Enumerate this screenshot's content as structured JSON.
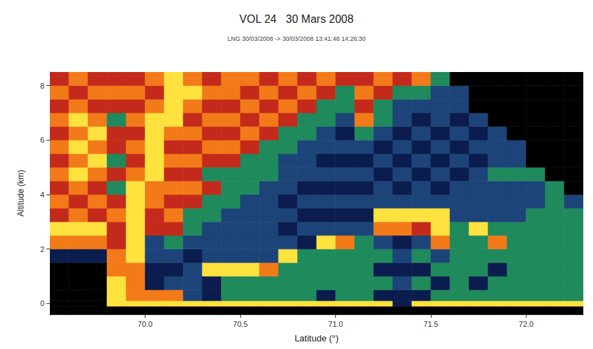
{
  "chart_data": {
    "type": "heatmap",
    "title": "VOL 24   30 Mars 2008",
    "subtitle": "LNG 30/03/2008 -> 30/03/2008 13:41:48 14:26:30",
    "xlabel": "Latitude (°)",
    "ylabel": "Altitude (km)",
    "xlim": [
      69.5,
      72.3
    ],
    "xticks": [
      {
        "value": 70,
        "label": "70.0"
      },
      {
        "value": 70.5,
        "label": "70.5"
      },
      {
        "value": 71,
        "label": "71.0"
      },
      {
        "value": 71.5,
        "label": "71.5"
      },
      {
        "value": 72,
        "label": "72.0"
      }
    ],
    "ylim": [
      -0.4,
      8.5
    ],
    "yticks": [
      0,
      2,
      4,
      6,
      8
    ],
    "grid": false,
    "colors": [
      "#000000",
      "#0b1c4e",
      "#1d4479",
      "#1f8a5c",
      "#c42a1c",
      "#f27a18",
      "#ffe23e"
    ],
    "lat_edges": [
      69.5,
      69.6,
      69.7,
      69.8,
      69.9,
      70.0,
      70.1,
      70.2,
      70.3,
      70.4,
      70.5,
      70.6,
      70.7,
      70.8,
      70.9,
      71.0,
      71.1,
      71.2,
      71.3,
      71.4,
      71.5,
      71.6,
      71.7,
      71.8,
      71.9,
      72.0,
      72.1,
      72.2,
      72.3
    ],
    "alt_edges": [
      -0.4,
      -0.1,
      0.1,
      0.5,
      1.0,
      1.5,
      2.0,
      2.5,
      3.0,
      3.5,
      4.0,
      4.5,
      5.0,
      5.5,
      6.0,
      6.5,
      7.0,
      7.5,
      8.0,
      8.5
    ],
    "cells": [
      [
        0,
        0,
        0,
        0,
        0,
        1,
        5,
        6,
        4,
        5,
        4,
        5,
        4,
        5,
        4,
        5,
        4,
        5,
        4
      ],
      [
        0,
        0,
        0,
        0,
        0,
        1,
        5,
        6,
        5,
        4,
        5,
        6,
        5,
        6,
        5,
        6,
        5,
        4,
        5
      ],
      [
        0,
        0,
        0,
        0,
        0,
        1,
        5,
        6,
        4,
        5,
        4,
        5,
        6,
        5,
        6,
        5,
        4,
        5,
        4
      ],
      [
        0,
        6,
        6,
        6,
        5,
        5,
        4,
        4,
        5,
        4,
        3,
        4,
        3,
        4,
        4,
        3,
        4,
        5,
        4
      ],
      [
        0,
        6,
        5,
        5,
        5,
        6,
        6,
        6,
        6,
        6,
        6,
        5,
        4,
        5,
        4,
        5,
        4,
        5,
        4
      ],
      [
        0,
        6,
        5,
        1,
        1,
        2,
        2,
        4,
        4,
        5,
        5,
        6,
        6,
        6,
        6,
        6,
        5,
        4,
        5
      ],
      [
        0,
        6,
        5,
        2,
        1,
        2,
        3,
        4,
        5,
        4,
        5,
        4,
        5,
        4,
        5,
        6,
        6,
        6,
        6
      ],
      [
        0,
        6,
        2,
        2,
        2,
        1,
        2,
        3,
        3,
        4,
        5,
        4,
        5,
        4,
        5,
        4,
        5,
        6,
        5
      ],
      [
        0,
        6,
        1,
        1,
        6,
        2,
        2,
        2,
        3,
        3,
        4,
        3,
        4,
        5,
        4,
        5,
        4,
        5,
        4
      ],
      [
        0,
        6,
        3,
        3,
        6,
        2,
        2,
        2,
        2,
        3,
        3,
        3,
        4,
        5,
        4,
        5,
        4,
        5,
        5
      ],
      [
        0,
        6,
        3,
        3,
        6,
        2,
        2,
        2,
        2,
        2,
        3,
        3,
        3,
        4,
        5,
        4,
        5,
        4,
        5
      ],
      [
        0,
        6,
        3,
        3,
        5,
        2,
        2,
        2,
        2,
        2,
        2,
        3,
        3,
        3,
        4,
        5,
        4,
        5,
        4
      ],
      [
        0,
        6,
        3,
        3,
        3,
        6,
        2,
        1,
        2,
        1,
        2,
        2,
        2,
        3,
        3,
        4,
        5,
        4,
        5
      ],
      [
        0,
        6,
        3,
        3,
        3,
        3,
        1,
        2,
        1,
        2,
        1,
        2,
        2,
        2,
        3,
        3,
        4,
        5,
        4
      ],
      [
        0,
        6,
        1,
        3,
        3,
        3,
        6,
        2,
        1,
        2,
        1,
        2,
        1,
        2,
        2,
        3,
        3,
        4,
        5
      ],
      [
        0,
        6,
        3,
        3,
        3,
        3,
        5,
        2,
        1,
        2,
        1,
        2,
        1,
        2,
        1,
        2,
        3,
        3,
        4
      ],
      [
        0,
        6,
        3,
        3,
        3,
        3,
        3,
        2,
        1,
        2,
        1,
        2,
        1,
        2,
        3,
        5,
        4,
        5,
        4
      ],
      [
        0,
        6,
        1,
        3,
        1,
        3,
        2,
        5,
        6,
        2,
        2,
        1,
        2,
        1,
        2,
        3,
        3,
        4,
        5
      ],
      [
        0,
        1,
        1,
        2,
        1,
        2,
        1,
        5,
        6,
        2,
        1,
        2,
        1,
        2,
        1,
        2,
        2,
        3,
        4
      ],
      [
        0,
        6,
        1,
        3,
        1,
        3,
        2,
        4,
        6,
        2,
        2,
        1,
        2,
        1,
        2,
        1,
        2,
        3,
        5
      ],
      [
        0,
        6,
        3,
        1,
        3,
        2,
        5,
        6,
        6,
        2,
        1,
        2,
        1,
        2,
        1,
        2,
        2,
        2,
        3
      ],
      [
        0,
        6,
        3,
        3,
        3,
        3,
        3,
        3,
        2,
        2,
        2,
        1,
        2,
        1,
        2,
        1,
        2,
        2,
        0
      ],
      [
        0,
        6,
        3,
        1,
        3,
        3,
        3,
        6,
        2,
        2,
        2,
        2,
        1,
        2,
        1,
        2,
        0,
        0,
        0
      ],
      [
        0,
        6,
        3,
        3,
        1,
        3,
        5,
        3,
        2,
        2,
        2,
        3,
        2,
        2,
        2,
        0,
        0,
        0,
        0
      ],
      [
        0,
        6,
        3,
        3,
        3,
        3,
        3,
        3,
        2,
        2,
        2,
        3,
        2,
        2,
        0,
        0,
        0,
        0,
        0
      ],
      [
        0,
        6,
        3,
        3,
        3,
        3,
        3,
        3,
        3,
        2,
        2,
        3,
        0,
        0,
        0,
        0,
        0,
        0,
        0
      ],
      [
        0,
        6,
        3,
        3,
        3,
        3,
        3,
        3,
        3,
        3,
        3,
        0,
        0,
        0,
        0,
        0,
        0,
        0,
        0
      ],
      [
        0,
        6,
        3,
        3,
        3,
        3,
        3,
        3,
        3,
        2,
        0,
        0,
        0,
        0,
        0,
        0,
        0,
        0,
        0
      ]
    ]
  }
}
